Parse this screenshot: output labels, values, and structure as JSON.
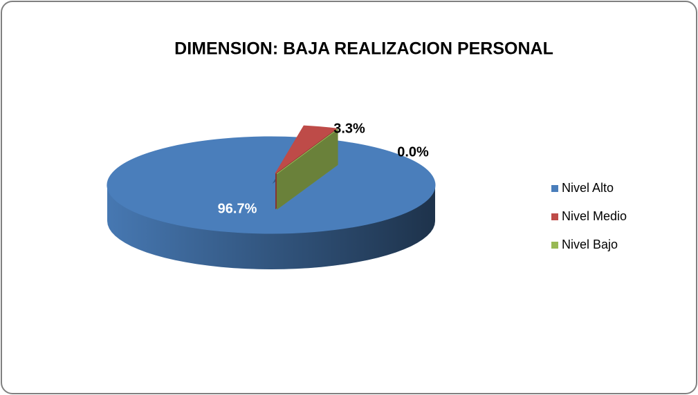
{
  "chart_data": {
    "type": "pie",
    "title": "DIMENSION: BAJA REALIZACION PERSONAL",
    "categories": [
      "Nivel Alto",
      "Nivel Medio",
      "Nivel Bajo"
    ],
    "values": [
      96.7,
      3.3,
      0.0
    ],
    "value_labels": [
      "96.7%",
      "3.3%",
      "0.0%"
    ],
    "colors": [
      "#4a7ebb",
      "#be4b48",
      "#98b954"
    ],
    "legend": "right"
  }
}
